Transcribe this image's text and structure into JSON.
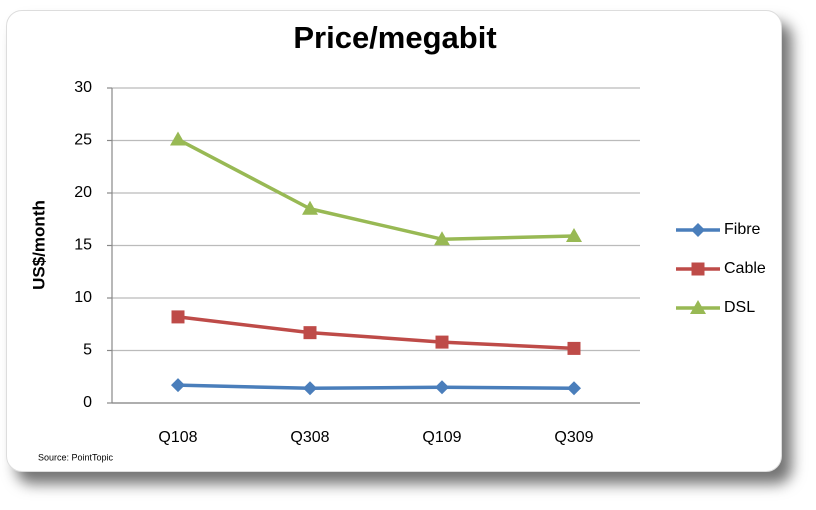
{
  "chart_data": {
    "type": "line",
    "title": "Price/megabit",
    "y_label": "US$/month",
    "source": "Source: PointTopic",
    "categories": [
      "Q108",
      "Q308",
      "Q109",
      "Q309"
    ],
    "series": [
      {
        "name": "Fibre",
        "color": "#4a7ebb",
        "marker": "diamond",
        "values": [
          1.7,
          1.4,
          1.5,
          1.4
        ]
      },
      {
        "name": "Cable",
        "color": "#be4b48",
        "marker": "square",
        "values": [
          8.2,
          6.7,
          5.8,
          5.2
        ]
      },
      {
        "name": "DSL",
        "color": "#98b954",
        "marker": "triangle",
        "values": [
          25.1,
          18.5,
          15.6,
          15.9
        ]
      }
    ],
    "ylim": [
      0,
      30
    ],
    "yticks": [
      0,
      5,
      10,
      15,
      20,
      25,
      30
    ],
    "grid": true,
    "legend": "right"
  }
}
